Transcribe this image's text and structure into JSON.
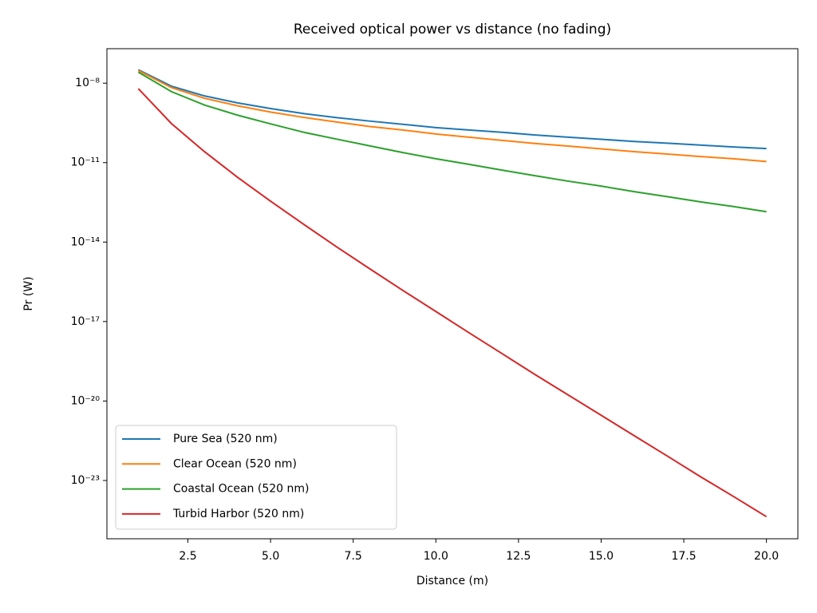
{
  "chart_data": {
    "type": "line",
    "title": "Received optical power vs distance (no fading)",
    "xlabel": "Distance (m)",
    "ylabel": "Pr (W)",
    "log_y": true,
    "grid": false,
    "legend": "lower left",
    "x": [
      1,
      2,
      3,
      4,
      5,
      6,
      7,
      8,
      9,
      10,
      11,
      12,
      13,
      14,
      15,
      16,
      17,
      18,
      19,
      20
    ],
    "series": [
      {
        "name": "Pure Sea (520 nm)",
        "color": "#1f77b4",
        "values": [
          3.2e-08,
          7.7e-09,
          3.3e-09,
          1.8e-09,
          1.1e-09,
          7.1e-10,
          5e-10,
          3.7e-10,
          2.8e-10,
          2.1e-10,
          1.7e-10,
          1.4e-10,
          1.1e-10,
          9.1e-11,
          7.6e-11,
          6.3e-11,
          5.4e-11,
          4.6e-11,
          3.9e-11,
          3.4e-11
        ]
      },
      {
        "name": "Clear Ocean (520 nm)",
        "color": "#ff7f0e",
        "values": [
          3e-08,
          6.8e-09,
          2.7e-09,
          1.4e-09,
          8.1e-10,
          5.1e-10,
          3.4e-10,
          2.3e-10,
          1.7e-10,
          1.2e-10,
          9.1e-11,
          6.9e-11,
          5.3e-11,
          4.2e-11,
          3.3e-11,
          2.6e-11,
          2.1e-11,
          1.7e-11,
          1.4e-11,
          1.1e-11
        ]
      },
      {
        "name": "Coastal Ocean (520 nm)",
        "color": "#2ca02c",
        "values": [
          2.6e-08,
          4.8e-09,
          1.5e-09,
          6.2e-10,
          2.9e-10,
          1.4e-10,
          7.7e-11,
          4.3e-11,
          2.4e-11,
          1.4e-11,
          8.6e-12,
          5.2e-12,
          3.2e-12,
          2e-12,
          1.3e-12,
          8e-13,
          5.2e-13,
          3.3e-13,
          2.2e-13,
          1.4e-13
        ]
      },
      {
        "name": "Turbid Harbor (520 nm)",
        "color": "#d62728",
        "values": [
          6.2e-09,
          3e-10,
          2.6e-11,
          2.8e-12,
          3.5e-13,
          4.7e-14,
          6.6e-15,
          9.8e-16,
          1.5e-16,
          2.4e-17,
          3.8e-18,
          6.2e-19,
          1e-19,
          1.7e-20,
          2.9e-21,
          4.9e-22,
          8.4e-23,
          1.4e-23,
          2.5e-24,
          4.3e-25
        ]
      }
    ],
    "xlim": [
      0.05,
      20.95
    ],
    "xticks": [
      2.5,
      {
        "value": 5,
        "label": "5.0"
      },
      7.5,
      {
        "value": 10,
        "label": "10.0"
      },
      12.5,
      {
        "value": 15,
        "label": "15.0"
      },
      17.5,
      {
        "value": 20,
        "label": "20.0"
      }
    ],
    "ylim": [
      6.3e-26,
      2e-07
    ],
    "yticks": [
      {
        "value": 1e-23,
        "label": "10⁻²³"
      },
      {
        "value": 1e-20,
        "label": "10⁻²⁰"
      },
      {
        "value": 1e-17,
        "label": "10⁻¹⁷"
      },
      {
        "value": 1e-14,
        "label": "10⁻¹⁴"
      },
      {
        "value": 1e-11,
        "label": "10⁻¹¹"
      },
      {
        "value": 1e-08,
        "label": "10⁻⁸"
      }
    ]
  }
}
